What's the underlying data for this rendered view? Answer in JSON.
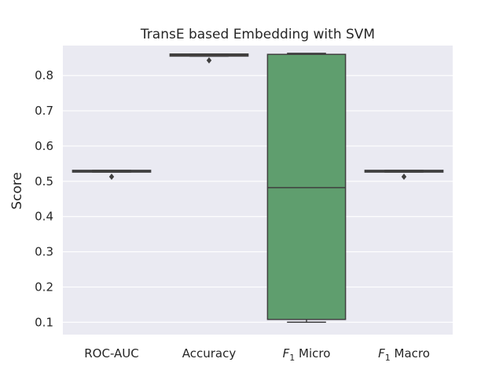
{
  "chart_data": {
    "type": "box",
    "title": "TransE based Embedding with SVM",
    "xlabel": "",
    "ylabel": "Score",
    "ylim": [
      0.065,
      0.885
    ],
    "yticks": [
      0.1,
      0.2,
      0.3,
      0.4,
      0.5,
      0.6,
      0.7,
      0.8
    ],
    "ytick_labels": [
      "0.1",
      "0.2",
      "0.3",
      "0.4",
      "0.5",
      "0.6",
      "0.7",
      "0.8"
    ],
    "grid": true,
    "categories": [
      {
        "name": "ROC-AUC",
        "label_main": "ROC-AUC",
        "label_sub": ""
      },
      {
        "name": "Accuracy",
        "label_main": "Accuracy",
        "label_sub": ""
      },
      {
        "name": "F1 Micro",
        "label_main": "F",
        "label_sub": "1",
        "label_rest": " Micro"
      },
      {
        "name": "F1 Macro",
        "label_main": "F",
        "label_sub": "1",
        "label_rest": " Macro"
      }
    ],
    "boxes": [
      {
        "category": "ROC-AUC",
        "whisker_low": 0.526,
        "q1": 0.526,
        "median": 0.529,
        "q3": 0.531,
        "whisker_high": 0.531,
        "outliers": [
          0.513
        ],
        "color": "#4c72b0"
      },
      {
        "category": "Accuracy",
        "whisker_low": 0.855,
        "q1": 0.855,
        "median": 0.858,
        "q3": 0.861,
        "whisker_high": 0.861,
        "outliers": [
          0.843
        ],
        "color": "#dd8452"
      },
      {
        "category": "F1 Micro",
        "whisker_low": 0.1,
        "q1": 0.108,
        "median": 0.482,
        "q3": 0.86,
        "whisker_high": 0.863,
        "outliers": [],
        "color": "#5f9e6e"
      },
      {
        "category": "F1 Macro",
        "whisker_low": 0.526,
        "q1": 0.526,
        "median": 0.529,
        "q3": 0.531,
        "whisker_high": 0.531,
        "outliers": [
          0.513
        ],
        "color": "#c44e52"
      }
    ],
    "colors": {
      "plot_background": "#eaeaf2",
      "grid": "#ffffff",
      "box_edge": "#3f3f3f"
    }
  }
}
